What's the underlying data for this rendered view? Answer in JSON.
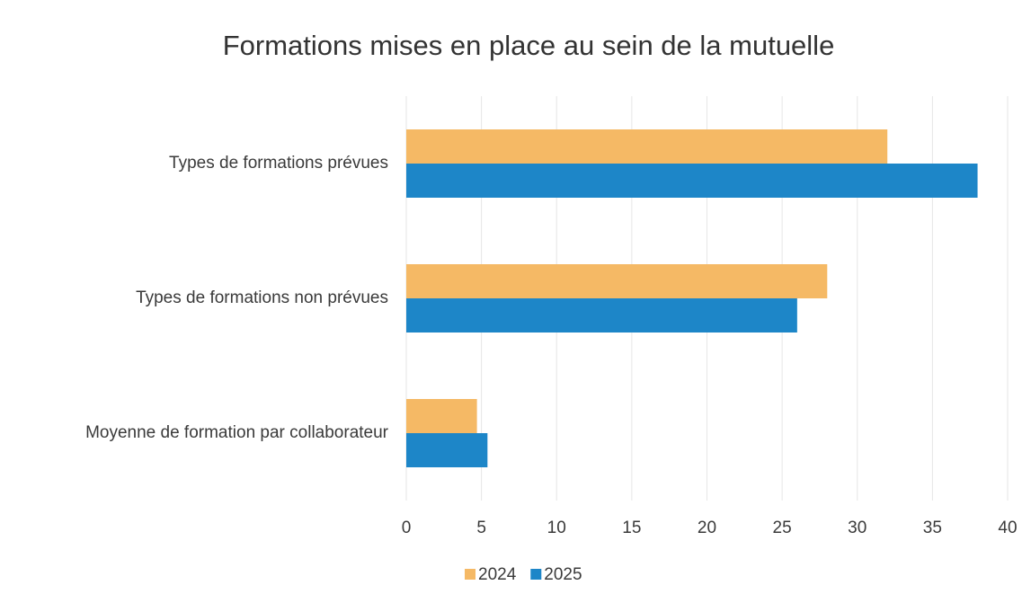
{
  "chart_data": {
    "type": "hbar",
    "title": "Formations mises en place au sein de la mutuelle",
    "categories": [
      "Types de formations prévues",
      "Types de formations non prévues",
      "Moyenne de formation par collaborateur"
    ],
    "series": [
      {
        "name": "2024",
        "color": "#f5b965",
        "values": [
          32,
          28,
          4.7
        ]
      },
      {
        "name": "2025",
        "color": "#1d86c8",
        "values": [
          38,
          26,
          5.4
        ]
      }
    ],
    "xlim": [
      0,
      40
    ],
    "xticks": [
      0,
      5,
      10,
      15,
      20,
      25,
      30,
      35,
      40
    ],
    "grid": true,
    "legend": "bottom"
  }
}
